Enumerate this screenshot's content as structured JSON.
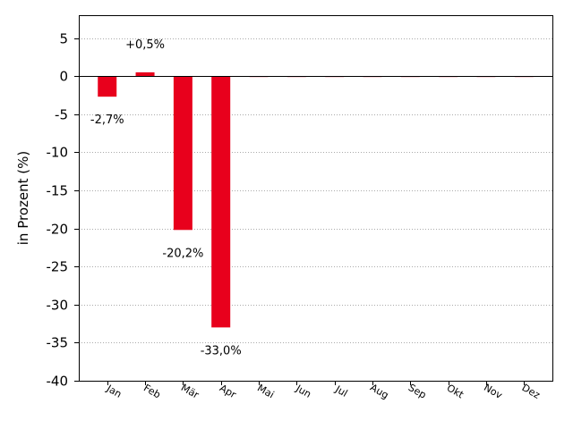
{
  "chart_data": {
    "type": "bar",
    "categories": [
      "Jan",
      "Feb",
      "Mär",
      "Apr",
      "Mai",
      "Jun",
      "Jul",
      "Aug",
      "Sep",
      "Okt",
      "Nov",
      "Dez"
    ],
    "values": [
      -2.7,
      0.5,
      -20.2,
      -33.0,
      0,
      0,
      0,
      0,
      0,
      0,
      0,
      0
    ],
    "data_labels": [
      "-2,7%",
      "+0,5%",
      "-20,2%",
      "-33,0%",
      "",
      "",
      "",
      "",
      "",
      "",
      "",
      ""
    ],
    "ylabel": "in Prozent (%)",
    "xlabel": "",
    "ylim": [
      -40,
      8
    ],
    "yticks": [
      5,
      0,
      -5,
      -10,
      -15,
      -20,
      -25,
      -30,
      -35,
      -40
    ],
    "grid": true,
    "bar_color": "#e8001c",
    "zero_line_color": "#000000",
    "grid_color": "#aaaaaa"
  }
}
